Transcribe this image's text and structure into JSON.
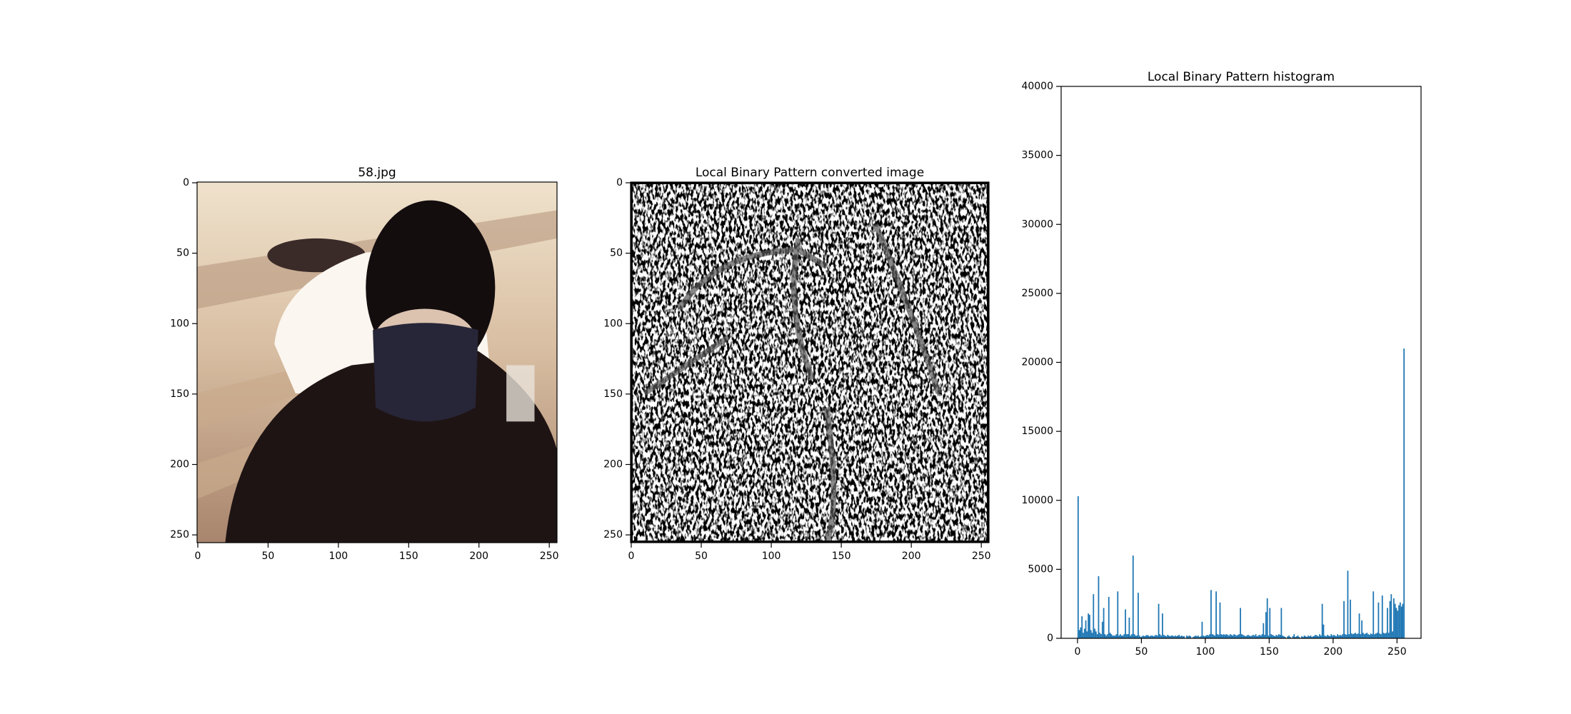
{
  "chart_data": [
    {
      "type": "image",
      "title": "58.jpg",
      "xlim": [
        -0.5,
        255.5
      ],
      "ylim": [
        255.5,
        -0.5
      ],
      "xticks": [
        0,
        50,
        100,
        150,
        200,
        250
      ],
      "yticks": [
        0,
        50,
        100,
        150,
        200,
        250
      ]
    },
    {
      "type": "image",
      "title": "Local Binary Pattern converted image",
      "xlim": [
        -0.5,
        255.5
      ],
      "ylim": [
        255.5,
        -0.5
      ],
      "xticks": [
        0,
        50,
        100,
        150,
        200,
        250
      ],
      "yticks": [
        0,
        50,
        100,
        150,
        200,
        250
      ]
    },
    {
      "type": "histogram",
      "title": "Local Binary Pattern histogram",
      "color": "#1f77b4",
      "xlim": [
        -12.8,
        268.8
      ],
      "ylim": [
        0,
        40000
      ],
      "xticks": [
        0,
        50,
        100,
        150,
        200,
        250
      ],
      "yticks": [
        0,
        5000,
        10000,
        15000,
        20000,
        25000,
        30000,
        35000,
        40000
      ],
      "bins": [
        0,
        1,
        2,
        3,
        4,
        5,
        6,
        7,
        8,
        9,
        10,
        11,
        12,
        13,
        14,
        15,
        16,
        17,
        18,
        19,
        20,
        21,
        22,
        23,
        24,
        25,
        26,
        27,
        28,
        29,
        30,
        31,
        32,
        33,
        34,
        35,
        36,
        37,
        38,
        39,
        40,
        41,
        42,
        43,
        44,
        45,
        46,
        47,
        48,
        49,
        50,
        51,
        52,
        53,
        54,
        55,
        56,
        57,
        58,
        59,
        60,
        61,
        62,
        63,
        64,
        65,
        66,
        67,
        68,
        69,
        70,
        71,
        72,
        73,
        74,
        75,
        76,
        77,
        78,
        79,
        80,
        81,
        82,
        83,
        84,
        85,
        86,
        87,
        88,
        89,
        90,
        91,
        92,
        93,
        94,
        95,
        96,
        97,
        98,
        99,
        100,
        101,
        102,
        103,
        104,
        105,
        106,
        107,
        108,
        109,
        110,
        111,
        112,
        113,
        114,
        115,
        116,
        117,
        118,
        119,
        120,
        121,
        122,
        123,
        124,
        125,
        126,
        127,
        128,
        129,
        130,
        131,
        132,
        133,
        134,
        135,
        136,
        137,
        138,
        139,
        140,
        141,
        142,
        143,
        144,
        145,
        146,
        147,
        148,
        149,
        150,
        151,
        152,
        153,
        154,
        155,
        156,
        157,
        158,
        159,
        160,
        161,
        162,
        163,
        164,
        165,
        166,
        167,
        168,
        169,
        170,
        171,
        172,
        173,
        174,
        175,
        176,
        177,
        178,
        179,
        180,
        181,
        182,
        183,
        184,
        185,
        186,
        187,
        188,
        189,
        190,
        191,
        192,
        193,
        194,
        195,
        196,
        197,
        198,
        199,
        200,
        201,
        202,
        203,
        204,
        205,
        206,
        207,
        208,
        209,
        210,
        211,
        212,
        213,
        214,
        215,
        216,
        217,
        218,
        219,
        220,
        221,
        222,
        223,
        224,
        225,
        226,
        227,
        228,
        229,
        230,
        231,
        232,
        233,
        234,
        235,
        236,
        237,
        238,
        239,
        240,
        241,
        242,
        243,
        244,
        245,
        246,
        247,
        248,
        249,
        250,
        251,
        252,
        253,
        254,
        255,
        256
      ],
      "counts": [
        10300,
        600,
        800,
        1600,
        400,
        700,
        1300,
        500,
        1800,
        1700,
        600,
        400,
        3200,
        700,
        500,
        300,
        4500,
        400,
        300,
        1200,
        2200,
        300,
        200,
        300,
        3000,
        400,
        300,
        200,
        200,
        200,
        300,
        3400,
        200,
        300,
        200,
        200,
        300,
        2100,
        300,
        300,
        1500,
        200,
        300,
        6000,
        300,
        200,
        200,
        3300,
        200,
        100,
        150,
        200,
        150,
        200,
        250,
        200,
        150,
        200,
        200,
        150,
        200,
        250,
        200,
        2500,
        300,
        200,
        1800,
        250,
        200,
        150,
        250,
        200,
        150,
        200,
        200,
        150,
        200,
        150,
        200,
        250,
        150,
        200,
        150,
        150,
        0,
        200,
        150,
        200,
        150,
        0,
        100,
        150,
        200,
        150,
        200,
        100,
        150,
        1200,
        200,
        150,
        200,
        250,
        200,
        300,
        3500,
        300,
        250,
        200,
        3400,
        300,
        250,
        2600,
        300,
        250,
        300,
        250,
        300,
        250,
        200,
        300,
        250,
        200,
        300,
        250,
        200,
        250,
        300,
        2200,
        300,
        250,
        200,
        150,
        200,
        250,
        200,
        150,
        200,
        250,
        200,
        300,
        150,
        200,
        250,
        200,
        300,
        1100,
        250,
        1900,
        2900,
        200,
        2200,
        300,
        250,
        200,
        150,
        250,
        200,
        300,
        250,
        2200,
        200,
        150,
        100,
        0,
        150,
        200,
        100,
        0,
        150,
        300,
        100,
        150,
        200,
        100,
        0,
        150,
        100,
        200,
        150,
        100,
        200,
        150,
        200,
        100,
        150,
        200,
        250,
        200,
        150,
        300,
        200,
        2500,
        1000,
        200,
        150,
        250,
        200,
        150,
        300,
        200,
        250,
        200,
        150,
        300,
        200,
        250,
        200,
        300,
        2700,
        300,
        250,
        4900,
        300,
        2800,
        350,
        300,
        350,
        400,
        300,
        350,
        1800,
        300,
        1300,
        400,
        300,
        350,
        400,
        300,
        250,
        350,
        300,
        3400,
        300,
        350,
        400,
        2600,
        350,
        300,
        3100,
        400,
        350,
        400,
        2200,
        400,
        2700,
        3200,
        500,
        2900,
        2500,
        2200,
        2000,
        2400,
        2600,
        2300,
        2500,
        21000
      ]
    }
  ]
}
